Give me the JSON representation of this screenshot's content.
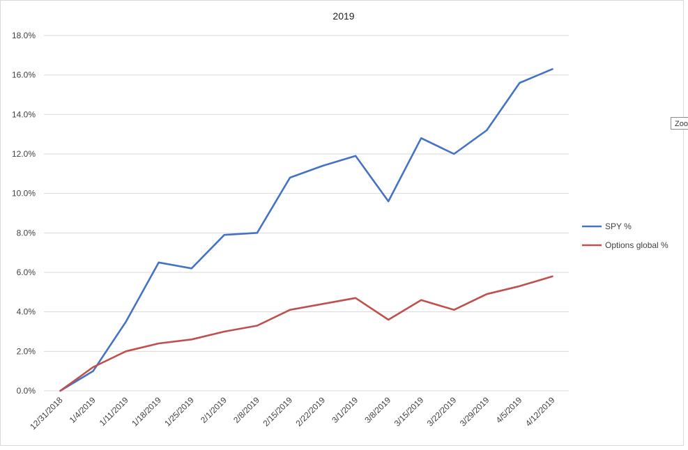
{
  "chart_data": {
    "type": "line",
    "title": "2019",
    "xlabel": "",
    "ylabel": "",
    "categories": [
      "12/31/2018",
      "1/4/2019",
      "1/11/2019",
      "1/18/2019",
      "1/25/2019",
      "2/1/2019",
      "2/8/2019",
      "2/15/2019",
      "2/22/2019",
      "3/1/2019",
      "3/8/2019",
      "3/15/2019",
      "3/22/2019",
      "3/29/2019",
      "4/5/2019",
      "4/12/2019"
    ],
    "ylim": [
      0,
      18
    ],
    "yticks": [
      "0.0%",
      "2.0%",
      "4.0%",
      "6.0%",
      "8.0%",
      "10.0%",
      "12.0%",
      "14.0%",
      "16.0%",
      "18.0%"
    ],
    "grid": true,
    "legend_position": "right",
    "series": [
      {
        "name": "SPY %",
        "color": "#4472c4",
        "values": [
          0.0,
          1.0,
          3.5,
          6.5,
          6.2,
          7.9,
          8.0,
          10.8,
          11.4,
          11.9,
          9.6,
          12.8,
          12.0,
          13.2,
          15.6,
          16.3
        ]
      },
      {
        "name": "Options global %",
        "color": "#c0504d",
        "values": [
          0.0,
          1.2,
          2.0,
          2.4,
          2.6,
          3.0,
          3.3,
          4.1,
          4.4,
          4.7,
          3.6,
          4.6,
          4.1,
          4.9,
          5.3,
          5.8
        ]
      }
    ]
  },
  "tooltip": {
    "text": "Zoom"
  }
}
